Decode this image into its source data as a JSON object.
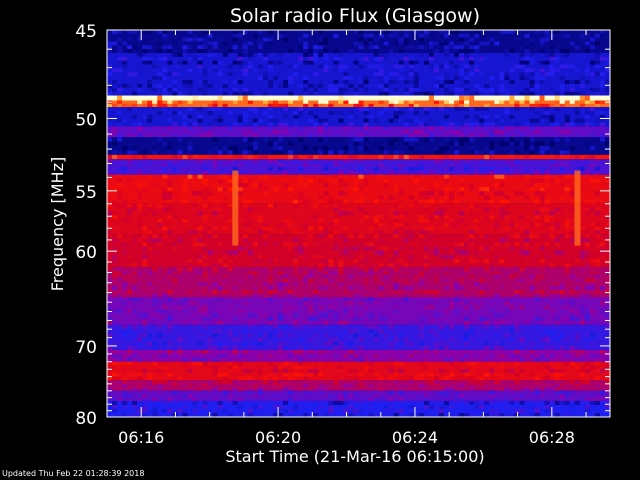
{
  "chart_data": {
    "type": "heatmap",
    "title": "Solar radio Flux (Glasgow)",
    "xlabel": "Start Time (21-Mar-16 06:15:00)",
    "ylabel": "Frequency [MHz]",
    "x_ticks": [
      "06:16",
      "06:20",
      "06:24",
      "06:28"
    ],
    "x_tick_minutes": [
      1,
      5,
      9,
      13
    ],
    "xlim_minutes": [
      0,
      14.7
    ],
    "y_ticks": [
      45,
      50,
      55,
      60,
      70,
      80
    ],
    "ylim": [
      45,
      80
    ],
    "y_scale": "reciprocal",
    "grid": false,
    "colors": {
      "background": "#000000",
      "low": "#000080",
      "mid_low": "#2020ff",
      "mid": "#8000c0",
      "high": "#ff0000",
      "max": "#ffff80"
    },
    "bands": [
      {
        "from": 45.0,
        "to": 46.2,
        "level": 0.05
      },
      {
        "from": 46.2,
        "to": 48.6,
        "level": 0.15
      },
      {
        "from": 48.6,
        "to": 48.9,
        "level": 1.0
      },
      {
        "from": 48.9,
        "to": 49.3,
        "level": 0.9
      },
      {
        "from": 49.3,
        "to": 50.5,
        "level": 0.15
      },
      {
        "from": 50.5,
        "to": 51.2,
        "level": 0.35
      },
      {
        "from": 51.2,
        "to": 52.4,
        "level": 0.05
      },
      {
        "from": 52.4,
        "to": 52.7,
        "level": 0.85
      },
      {
        "from": 52.7,
        "to": 53.8,
        "level": 0.3
      },
      {
        "from": 53.8,
        "to": 56.0,
        "level": 0.75
      },
      {
        "from": 56.0,
        "to": 58.5,
        "level": 0.7
      },
      {
        "from": 58.5,
        "to": 61.5,
        "level": 0.65
      },
      {
        "from": 61.5,
        "to": 64.5,
        "level": 0.55
      },
      {
        "from": 64.5,
        "to": 67.5,
        "level": 0.4
      },
      {
        "from": 67.5,
        "to": 70.5,
        "level": 0.25
      },
      {
        "from": 70.5,
        "to": 72.0,
        "level": 0.45
      },
      {
        "from": 72.0,
        "to": 74.5,
        "level": 0.72
      },
      {
        "from": 74.5,
        "to": 76.0,
        "level": 0.55
      },
      {
        "from": 76.0,
        "to": 77.5,
        "level": 0.35
      },
      {
        "from": 77.5,
        "to": 80.0,
        "level": 0.2
      }
    ],
    "bursts": [
      {
        "minute": 3.75,
        "from": 53.5,
        "to": 59.5
      },
      {
        "minute": 13.75,
        "from": 53.5,
        "to": 59.5
      }
    ]
  },
  "footer": {
    "updated": "Updated Thu Feb 22 01:28:39 2018"
  }
}
